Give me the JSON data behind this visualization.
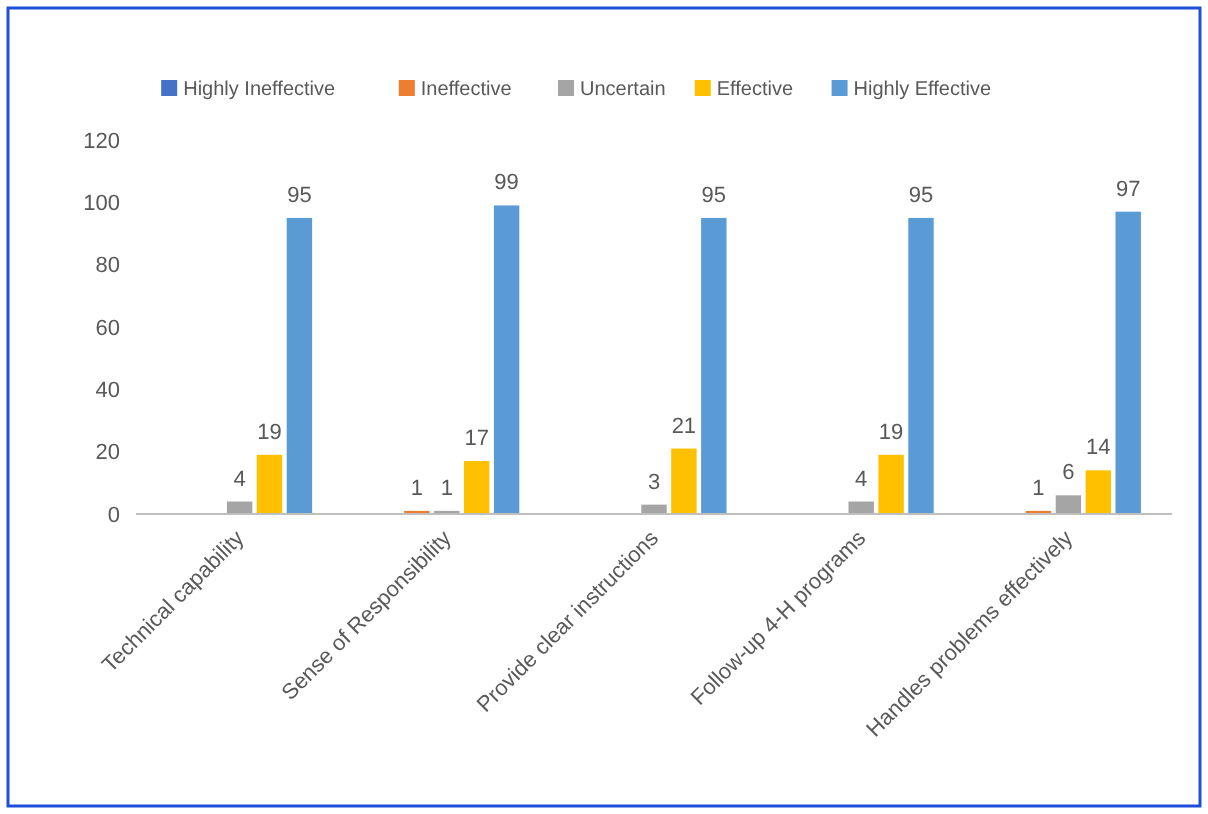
{
  "chart_data": {
    "type": "bar",
    "categories": [
      "Technical capability",
      "Sense of Responsibility",
      "Provide clear instructions",
      "Follow-up 4-H programs",
      "Handles problems effectively"
    ],
    "series": [
      {
        "name": "Highly Ineffective",
        "color": "#4472c4",
        "values": [
          0,
          0,
          0,
          0,
          0
        ],
        "value_labels": [
          null,
          null,
          null,
          null,
          null
        ]
      },
      {
        "name": "Ineffective",
        "color": "#ed7d31",
        "values": [
          0,
          1,
          0,
          0,
          1
        ],
        "value_labels": [
          null,
          "1",
          null,
          null,
          "1"
        ]
      },
      {
        "name": "Uncertain",
        "color": "#a5a5a5",
        "values": [
          4,
          1,
          3,
          4,
          6
        ],
        "value_labels": [
          "4",
          "1",
          "3",
          "4",
          "6"
        ]
      },
      {
        "name": "Effective",
        "color": "#ffc000",
        "values": [
          19,
          17,
          21,
          19,
          14
        ],
        "value_labels": [
          "19",
          "17",
          "21",
          "19",
          "14"
        ]
      },
      {
        "name": "Highly Effective",
        "color": "#5b9bd5",
        "values": [
          95,
          99,
          95,
          95,
          97
        ],
        "value_labels": [
          "95",
          "99",
          "95",
          "95",
          "97"
        ]
      }
    ],
    "ylim": [
      0,
      120
    ],
    "yticks": [
      0,
      20,
      40,
      60,
      80,
      100,
      120
    ],
    "grid": false,
    "legend": "top"
  }
}
